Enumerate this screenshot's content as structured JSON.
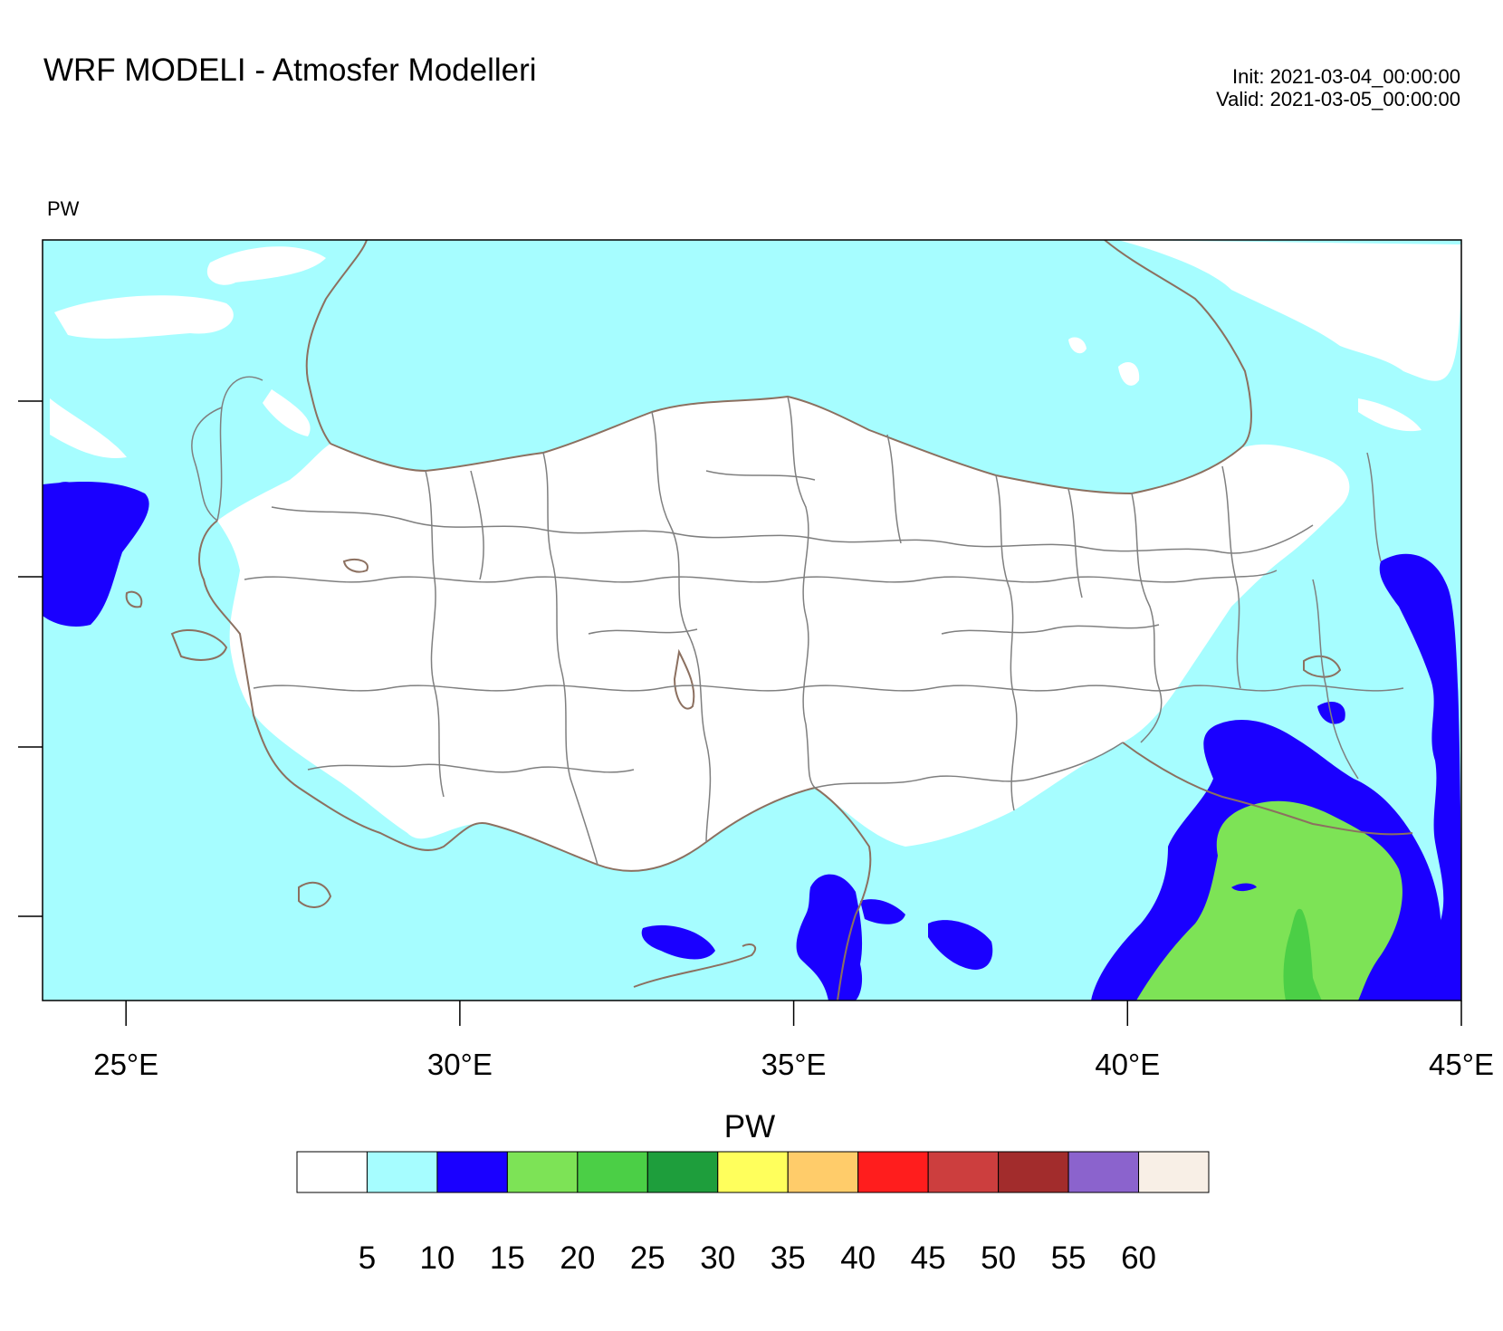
{
  "title": "WRF MODELI - Atmosfer Modelleri",
  "init_text": "Init: 2021-03-04_00:00:00",
  "valid_text": "Valid: 2021-03-05_00:00:00",
  "variable_label": "PW",
  "map": {
    "lon_range": [
      23.75,
      45.0
    ],
    "lon_ticks": [
      {
        "value": 25,
        "label": "25°E"
      },
      {
        "value": 30,
        "label": "30°E"
      },
      {
        "value": 35,
        "label": "35°E"
      },
      {
        "value": 40,
        "label": "40°E"
      },
      {
        "value": 45,
        "label": "45°E"
      }
    ],
    "sea_fill_color": "#a6fdff",
    "land_fill_color": "#ffffff",
    "border_color": "#7f7f7f",
    "coast_color": "#8c7060",
    "regions": [
      {
        "name": "medium",
        "color": "#1a00ff"
      },
      {
        "name": "high",
        "color": "#7de356"
      },
      {
        "name": "higher",
        "color": "#4bcf46"
      }
    ]
  },
  "colorbar": {
    "title": "PW",
    "colors": [
      "#ffffff",
      "#a6fdff",
      "#1a00ff",
      "#7de356",
      "#4bcf46",
      "#1e9e3c",
      "#ffff5c",
      "#ffcc6a",
      "#ff1d1d",
      "#cc3e3e",
      "#a22c2c",
      "#8b63cd",
      "#f8efe6"
    ],
    "labels": [
      "5",
      "10",
      "15",
      "20",
      "25",
      "30",
      "35",
      "40",
      "45",
      "50",
      "55",
      "60"
    ]
  }
}
